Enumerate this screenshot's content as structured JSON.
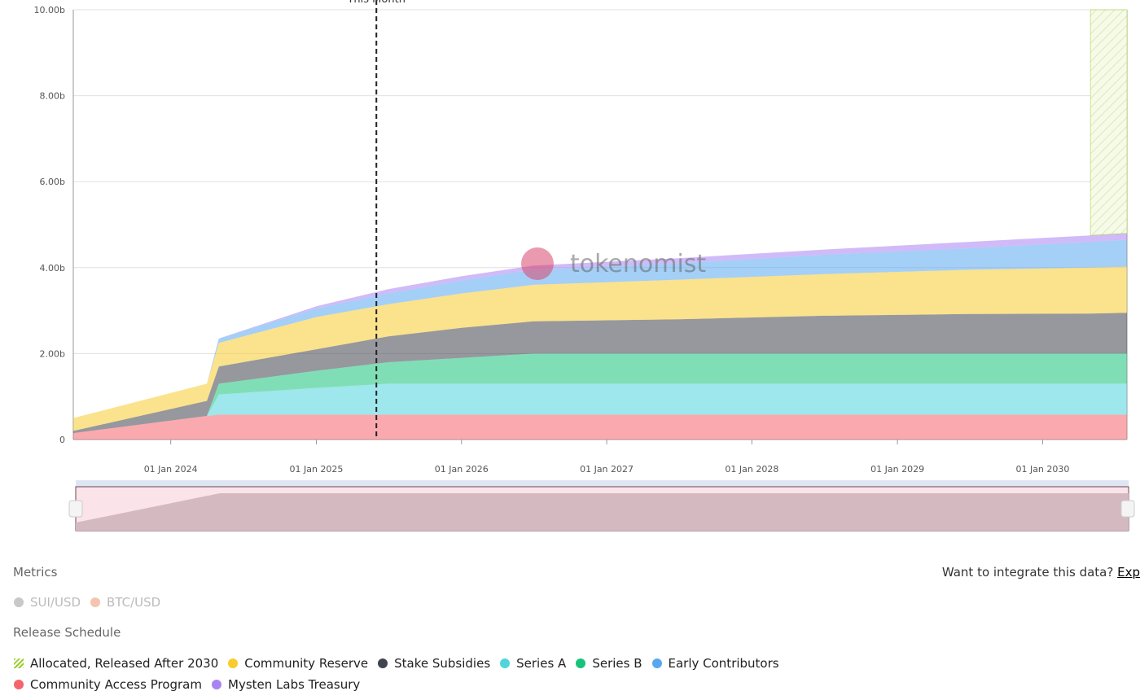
{
  "chart_data": {
    "type": "area",
    "stacked": true,
    "watermark": "tokenomist",
    "x": [
      "2023-05-01",
      "2024-04-01",
      "2024-05-01",
      "2025-01-01",
      "2025-07-01",
      "2026-01-01",
      "2026-07-01",
      "2027-07-01",
      "2028-07-01",
      "2029-07-01",
      "2030-05-01",
      "2030-08-01"
    ],
    "xlim": [
      "2023-05-01",
      "2030-08-01"
    ],
    "xticks": [
      {
        "value": "2024-01-01",
        "label": "01 Jan 2024"
      },
      {
        "value": "2025-01-01",
        "label": "01 Jan 2025"
      },
      {
        "value": "2026-01-01",
        "label": "01 Jan 2026"
      },
      {
        "value": "2027-01-01",
        "label": "01 Jan 2027"
      },
      {
        "value": "2028-01-01",
        "label": "01 Jan 2028"
      },
      {
        "value": "2029-01-01",
        "label": "01 Jan 2029"
      },
      {
        "value": "2030-01-01",
        "label": "01 Jan 2030"
      }
    ],
    "ylim": [
      0,
      10
    ],
    "yticks": [
      0,
      {
        "value": 2,
        "label": "2.00b"
      },
      {
        "value": 4,
        "label": "4.00b"
      },
      {
        "value": 6,
        "label": "6.00b"
      },
      {
        "value": 8,
        "label": "8.00b"
      },
      {
        "value": 10,
        "label": "10.00b"
      }
    ],
    "grid": true,
    "annotation": {
      "label": "This Month",
      "x": "2025-06-01"
    },
    "series": [
      {
        "name": "Community Access Program",
        "color": "#f5646d",
        "values": [
          0.15,
          0.55,
          0.58,
          0.58,
          0.58,
          0.58,
          0.58,
          0.58,
          0.58,
          0.58,
          0.58,
          0.58
        ]
      },
      {
        "name": "Series A",
        "color": "#4fd4dc",
        "values": [
          0,
          0,
          0.47,
          0.62,
          0.72,
          0.72,
          0.72,
          0.72,
          0.72,
          0.72,
          0.72,
          0.72
        ]
      },
      {
        "name": "Series B",
        "color": "#17c27a",
        "values": [
          0,
          0,
          0.25,
          0.4,
          0.5,
          0.6,
          0.7,
          0.7,
          0.7,
          0.7,
          0.7,
          0.7
        ]
      },
      {
        "name": "Stake Subsidies",
        "color": "#3f444d",
        "values": [
          0.05,
          0.35,
          0.4,
          0.5,
          0.6,
          0.7,
          0.75,
          0.8,
          0.88,
          0.92,
          0.93,
          0.95
        ]
      },
      {
        "name": "Community Reserve",
        "color": "#f8cb2e",
        "values": [
          0.3,
          0.4,
          0.55,
          0.75,
          0.75,
          0.8,
          0.85,
          0.92,
          0.97,
          1.03,
          1.07,
          1.07
        ]
      },
      {
        "name": "Early Contributors",
        "color": "#5aa7f1",
        "values": [
          0,
          0,
          0.1,
          0.2,
          0.25,
          0.3,
          0.35,
          0.38,
          0.45,
          0.5,
          0.6,
          0.63
        ]
      },
      {
        "name": "Mysten Labs Treasury",
        "color": "#a983f3",
        "values": [
          0,
          0,
          0,
          0.05,
          0.1,
          0.1,
          0.1,
          0.12,
          0.12,
          0.15,
          0.15,
          0.15
        ]
      },
      {
        "name": "Allocated, Released After 2030",
        "color": "#9acd32",
        "pattern": "hatched",
        "values": [
          null,
          null,
          null,
          null,
          null,
          null,
          null,
          null,
          null,
          null,
          5.25,
          5.2
        ]
      }
    ]
  },
  "metrics": {
    "title": "Metrics",
    "items": [
      {
        "name": "SUI/USD",
        "color": "#c8c8c8"
      },
      {
        "name": "BTC/USD",
        "color": "#f3c5b0"
      }
    ]
  },
  "release_schedule_title": "Release Schedule",
  "integrate": {
    "text": "Want to integrate this data?",
    "link": "Exp"
  }
}
